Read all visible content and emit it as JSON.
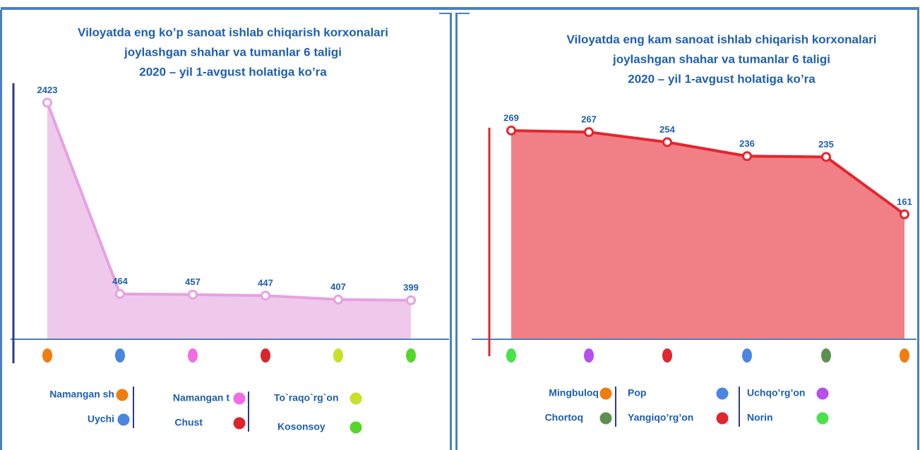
{
  "chart_data": [
    {
      "type": "area",
      "title": [
        "Viloyatda eng ko’p sanoat ishlab chiqarish korxonalari",
        "joylashgan shahar va tumanlar 6 taligi",
        "2020 – yil 1-avgust holatiga ko’ra"
      ],
      "categories": [
        "Namangan sh",
        "Uychi",
        "Namangan t",
        "Chust",
        "To`raqo`rg`on",
        "Kosonsoy"
      ],
      "category_colors": [
        "#f07d0f",
        "#4a86e0",
        "#f06de6",
        "#d9262a",
        "#c8e025",
        "#55d62a"
      ],
      "values": [
        2423,
        464,
        457,
        447,
        407,
        399
      ],
      "color": "#e6a2e0",
      "fill": "#efc9ec",
      "axis_color": "#2e3a8c",
      "ylim": [
        0,
        2600
      ]
    },
    {
      "type": "area",
      "title": [
        "Viloyatda eng kam sanoat ishlab chiqarish korxonalari",
        "joylashgan shahar va tumanlar 6 taligi",
        "2020 – yil 1-avgust holatiga ko’ra"
      ],
      "categories": [
        "Norin",
        "Uchqo’rg’on",
        "Yangiqo’rg’on",
        "Pop",
        "Chortoq",
        "Mingbuloq"
      ],
      "category_colors": [
        "#49e24a",
        "#b64ef0",
        "#e0262f",
        "#4a86e0",
        "#5b9150",
        "#f07d0f"
      ],
      "values": [
        269,
        267,
        254,
        236,
        235,
        161
      ],
      "color": "#e3262f",
      "fill": "#f08086",
      "axis_color": "#e3262f",
      "ylim": [
        0,
        275
      ]
    }
  ]
}
